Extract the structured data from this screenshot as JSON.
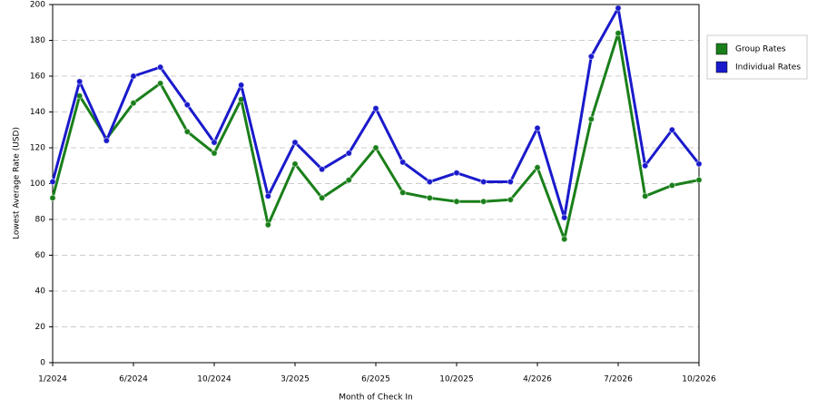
{
  "chart_data": {
    "type": "line",
    "x_label": "Month of Check In",
    "y_label": "Lowest Average Rate (USD)",
    "categories": [
      "1/2024",
      null,
      null,
      "6/2024",
      null,
      null,
      "10/2024",
      null,
      null,
      "3/2025",
      null,
      null,
      "6/2025",
      null,
      null,
      "10/2025",
      null,
      null,
      "4/2026",
      null,
      null,
      "7/2026",
      null,
      null,
      "10/2026"
    ],
    "series": [
      {
        "name": "Group Rates",
        "color": "#1a7f1a",
        "values": [
          92,
          149,
          125,
          145,
          156,
          129,
          117,
          147,
          77,
          111,
          92,
          102,
          120,
          95,
          92,
          90,
          90,
          91,
          109,
          69,
          136,
          184,
          93,
          99,
          102
        ]
      },
      {
        "name": "Individual Rates",
        "color": "#1a1acc",
        "values": [
          101,
          157,
          124,
          160,
          165,
          144,
          123,
          155,
          93,
          123,
          108,
          117,
          142,
          112,
          101,
          106,
          101,
          101,
          131,
          81,
          171,
          198,
          110,
          130,
          111
        ]
      }
    ],
    "ylim": [
      0,
      200
    ],
    "yticks": [
      0,
      20,
      40,
      60,
      80,
      100,
      120,
      140,
      160,
      180,
      200
    ],
    "grid": true,
    "legend": "right"
  }
}
